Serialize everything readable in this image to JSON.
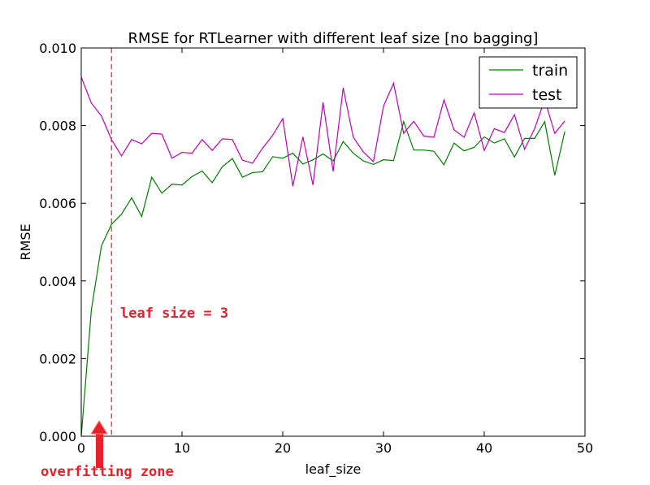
{
  "chart_data": {
    "type": "line",
    "title": "RMSE for RTLearner with different leaf size [no bagging]",
    "xlabel": "leaf_size",
    "ylabel": "RMSE",
    "xlim": [
      0,
      50
    ],
    "ylim": [
      0.0,
      0.01
    ],
    "xticks": [
      "0",
      "10",
      "20",
      "30",
      "40",
      "50"
    ],
    "yticks": [
      "0.000",
      "0.002",
      "0.004",
      "0.006",
      "0.008",
      "0.010"
    ],
    "legend_position": "top-right",
    "grid": false,
    "x": [
      0,
      1,
      2,
      3,
      4,
      5,
      6,
      7,
      8,
      9,
      10,
      11,
      12,
      13,
      14,
      15,
      16,
      17,
      18,
      19,
      20,
      21,
      22,
      23,
      24,
      25,
      26,
      27,
      28,
      29,
      30,
      31,
      32,
      33,
      34,
      35,
      36,
      37,
      38,
      39,
      40,
      41,
      42,
      43,
      44,
      45,
      46,
      47,
      48
    ],
    "series": [
      {
        "name": "train",
        "color": "#007f00",
        "values": [
          0.0,
          0.00325,
          0.0049,
          0.00546,
          0.00572,
          0.00614,
          0.00566,
          0.00667,
          0.00626,
          0.00649,
          0.00647,
          0.00669,
          0.00683,
          0.00653,
          0.00694,
          0.00715,
          0.00667,
          0.00679,
          0.00681,
          0.0072,
          0.00716,
          0.00729,
          0.00701,
          0.00712,
          0.00727,
          0.00709,
          0.00759,
          0.00729,
          0.00709,
          0.007,
          0.00712,
          0.0071,
          0.0081,
          0.00737,
          0.00737,
          0.00734,
          0.00699,
          0.00755,
          0.00735,
          0.00744,
          0.00771,
          0.00755,
          0.00766,
          0.00719,
          0.00767,
          0.00767,
          0.0081,
          0.00672,
          0.00785
        ]
      },
      {
        "name": "test",
        "color": "#bf00bf",
        "values": [
          0.00925,
          0.00858,
          0.00825,
          0.00764,
          0.00722,
          0.00764,
          0.00753,
          0.0078,
          0.00778,
          0.00716,
          0.00731,
          0.00729,
          0.00764,
          0.00736,
          0.00766,
          0.00764,
          0.00711,
          0.00703,
          0.00742,
          0.00775,
          0.00818,
          0.00644,
          0.00771,
          0.00647,
          0.0086,
          0.00682,
          0.00897,
          0.0077,
          0.00732,
          0.00707,
          0.0085,
          0.00909,
          0.0078,
          0.00811,
          0.00773,
          0.0077,
          0.00866,
          0.00789,
          0.0077,
          0.00833,
          0.00736,
          0.00792,
          0.00782,
          0.00828,
          0.00739,
          0.00792,
          0.00867,
          0.0078,
          0.00812
        ]
      }
    ],
    "annotations": {
      "vline_x": 3,
      "vline_color": "#e8202a",
      "vline_label": "leaf size = 3",
      "zone_label": "overfitting zone",
      "arrow_color": "#e8202a"
    }
  }
}
